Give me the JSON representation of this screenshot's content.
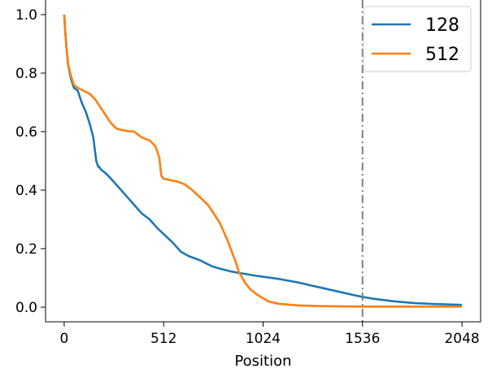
{
  "chart_data": {
    "type": "line",
    "xlabel": "Position",
    "ylabel": "",
    "xlim": [
      -96,
      2144
    ],
    "ylim": [
      -0.05,
      1.05
    ],
    "xticks": [
      0,
      512,
      1024,
      1536,
      2048
    ],
    "xtick_labels": [
      "0",
      "512",
      "1024",
      "1536",
      "2048"
    ],
    "yticks": [
      0.0,
      0.2,
      0.4,
      0.6,
      0.8,
      1.0
    ],
    "ytick_labels": [
      "0.0",
      "0.2",
      "0.4",
      "0.6",
      "0.8",
      "1.0"
    ],
    "vline": {
      "x": 1536,
      "color": "#808080",
      "style": "dashdot"
    },
    "legend": {
      "position": "top-right"
    },
    "series": [
      {
        "name": "128",
        "color": "#1f77b4",
        "x": [
          0,
          10,
          20,
          35,
          50,
          70,
          90,
          110,
          130,
          150,
          165,
          175,
          180,
          190,
          210,
          240,
          280,
          320,
          360,
          400,
          440,
          480,
          520,
          560,
          600,
          640,
          700,
          760,
          800,
          860,
          920,
          980,
          1024,
          1100,
          1200,
          1300,
          1400,
          1500,
          1536,
          1600,
          1700,
          1800,
          1900,
          2000,
          2048
        ],
        "y": [
          1.0,
          0.9,
          0.83,
          0.78,
          0.75,
          0.74,
          0.7,
          0.67,
          0.63,
          0.58,
          0.5,
          0.48,
          0.48,
          0.47,
          0.46,
          0.44,
          0.41,
          0.38,
          0.35,
          0.32,
          0.3,
          0.27,
          0.245,
          0.22,
          0.19,
          0.175,
          0.16,
          0.14,
          0.132,
          0.122,
          0.115,
          0.108,
          0.104,
          0.097,
          0.085,
          0.07,
          0.055,
          0.04,
          0.035,
          0.028,
          0.02,
          0.014,
          0.011,
          0.009,
          0.008
        ]
      },
      {
        "name": "512",
        "color": "#ff7f0e",
        "x": [
          0,
          10,
          20,
          35,
          50,
          70,
          100,
          130,
          160,
          190,
          220,
          240,
          270,
          300,
          330,
          360,
          380,
          400,
          440,
          470,
          490,
          500,
          510,
          520,
          540,
          580,
          620,
          660,
          700,
          740,
          770,
          800,
          820,
          840,
          860,
          880,
          900,
          930,
          960,
          1000,
          1050,
          1100,
          1200,
          1300,
          1400,
          1536,
          1700,
          1900,
          2048
        ],
        "y": [
          1.0,
          0.9,
          0.83,
          0.79,
          0.76,
          0.75,
          0.74,
          0.73,
          0.71,
          0.68,
          0.65,
          0.63,
          0.61,
          0.605,
          0.602,
          0.6,
          0.59,
          0.58,
          0.57,
          0.55,
          0.51,
          0.45,
          0.44,
          0.438,
          0.435,
          0.43,
          0.42,
          0.4,
          0.375,
          0.35,
          0.32,
          0.29,
          0.26,
          0.23,
          0.195,
          0.16,
          0.12,
          0.085,
          0.06,
          0.04,
          0.02,
          0.012,
          0.006,
          0.004,
          0.003,
          0.002,
          0.002,
          0.002,
          0.002
        ]
      }
    ]
  }
}
